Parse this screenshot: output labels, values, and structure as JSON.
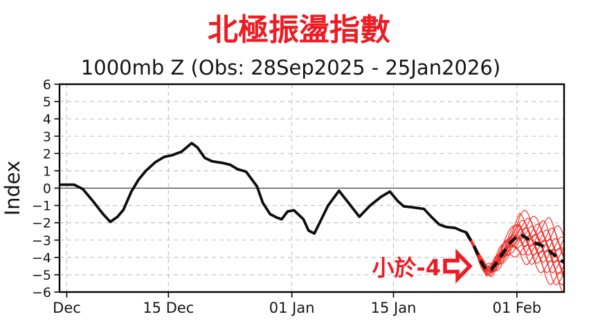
{
  "title": {
    "text": "北極振盪指數",
    "color": "#ed1b23"
  },
  "subtitle": {
    "text": "1000mb Z (Obs: 28Sep2025 - 25Jan2026)"
  },
  "axes": {
    "ylabel": "Index"
  },
  "annotation": {
    "text": "小於-4",
    "color": "#ed1b23",
    "arrow_icon": "hollow-right-arrow"
  },
  "colors": {
    "accent_red": "#ed1b23",
    "ensemble_red": "#f02822",
    "observed_black": "#0d0d0d",
    "grid_gray": "#bfbfbf",
    "zero_line": "#3c3c3c"
  },
  "chart_data": {
    "type": "line",
    "title": "北極振盪指數",
    "subtitle": "1000mb Z (Obs: 28Sep2025 - 25Jan2026)",
    "xlabel": "",
    "ylabel": "Index",
    "ylim": [
      -6,
      6
    ],
    "y_ticks": [
      6,
      5,
      4,
      3,
      2,
      1,
      0,
      -1,
      -2,
      -3,
      -4,
      -5,
      -6
    ],
    "x_axis": {
      "range_days": [
        0,
        69.5
      ],
      "day0_date": "30 Nov",
      "ticks": [
        {
          "label": "Dec",
          "day": 1
        },
        {
          "label": "15 Dec",
          "day": 15
        },
        {
          "label": "01 Jan",
          "day": 32
        },
        {
          "label": "15 Jan",
          "day": 46
        },
        {
          "label": "01 Feb",
          "day": 63
        }
      ]
    },
    "grid": {
      "horizontal_dashed_at": [
        5,
        4,
        3,
        2,
        1,
        -1,
        -2,
        -3,
        -4,
        -5
      ],
      "zero_line": "solid",
      "vertical_dashed_at_ticks": true
    },
    "series": [
      {
        "name": "observed",
        "style": "solid",
        "color": "#0d0d0d",
        "width": 3.8,
        "points": [
          [
            0,
            0.2
          ],
          [
            1,
            0.2
          ],
          [
            2,
            0.2
          ],
          [
            3.2,
            -0.05
          ],
          [
            4.6,
            -0.75
          ],
          [
            6,
            -1.5
          ],
          [
            7,
            -1.95
          ],
          [
            8,
            -1.65
          ],
          [
            8.8,
            -1.25
          ],
          [
            9.9,
            -0.2
          ],
          [
            10.9,
            0.5
          ],
          [
            11.9,
            1.0
          ],
          [
            13.2,
            1.5
          ],
          [
            14.4,
            1.8
          ],
          [
            15.5,
            1.9
          ],
          [
            16.8,
            2.1
          ],
          [
            18.2,
            2.6
          ],
          [
            19,
            2.35
          ],
          [
            20,
            1.75
          ],
          [
            21,
            1.55
          ],
          [
            22.5,
            1.45
          ],
          [
            23.5,
            1.35
          ],
          [
            24.5,
            1.1
          ],
          [
            25.7,
            0.95
          ],
          [
            27.2,
            0.1
          ],
          [
            28,
            -0.85
          ],
          [
            29,
            -1.5
          ],
          [
            29.9,
            -1.7
          ],
          [
            30.6,
            -1.8
          ],
          [
            31.4,
            -1.35
          ],
          [
            32.3,
            -1.28
          ],
          [
            33.6,
            -1.8
          ],
          [
            34.3,
            -2.45
          ],
          [
            35.1,
            -2.62
          ],
          [
            37,
            -1.0
          ],
          [
            38.5,
            -0.15
          ],
          [
            39.9,
            -0.9
          ],
          [
            41.3,
            -1.65
          ],
          [
            42.8,
            -1.0
          ],
          [
            44.3,
            -0.5
          ],
          [
            45.5,
            -0.2
          ],
          [
            46.6,
            -0.75
          ],
          [
            47.4,
            -1.05
          ],
          [
            48.5,
            -1.1
          ],
          [
            50.2,
            -1.2
          ],
          [
            51.2,
            -1.65
          ],
          [
            52.3,
            -2.1
          ],
          [
            53.3,
            -2.25
          ],
          [
            54.5,
            -2.3
          ],
          [
            55.3,
            -2.45
          ],
          [
            56,
            -2.55
          ]
        ]
      },
      {
        "name": "ensemble_mean",
        "style": "dashed",
        "color": "#0d0d0d",
        "width": 4.6,
        "points": [
          [
            56,
            -2.55
          ],
          [
            57.1,
            -3.35
          ],
          [
            58,
            -4.2
          ],
          [
            58.8,
            -4.75
          ],
          [
            59.5,
            -4.7
          ],
          [
            60.2,
            -4.3
          ],
          [
            61,
            -3.8
          ],
          [
            62.2,
            -3.1
          ],
          [
            63.4,
            -2.65
          ],
          [
            64.4,
            -2.9
          ],
          [
            65.4,
            -3.15
          ],
          [
            66.4,
            -3.3
          ],
          [
            67.4,
            -3.6
          ],
          [
            68.4,
            -3.95
          ],
          [
            69.5,
            -4.3
          ]
        ]
      }
    ],
    "ensemble": {
      "name": "forecast_members",
      "color": "#f02822",
      "width": 1.3,
      "opacity": 0.88,
      "count": 18,
      "base_offsets": [
        -1,
        -0.87,
        -0.74,
        -0.62,
        -0.5,
        -0.38,
        -0.27,
        -0.16,
        -0.05,
        0.05,
        0.16,
        0.27,
        0.38,
        0.5,
        0.62,
        0.74,
        0.87,
        1
      ],
      "spread": [
        0.04,
        0.12,
        0.2,
        0.27,
        0.3,
        0.33,
        0.42,
        0.6,
        0.95,
        1.05,
        1.1,
        1.18,
        1.27,
        1.36,
        1.45
      ],
      "wiggle_amp": [
        0.02,
        0.06,
        0.1,
        0.14,
        0.17,
        0.2,
        0.26,
        0.36,
        0.5,
        0.55,
        0.57,
        0.6,
        0.64,
        0.67,
        0.7
      ],
      "wiggle_freq": 1.9,
      "wiggle_phase_step": 2.4,
      "value_floor": -5.98
    },
    "annotation": {
      "text": "小於-4",
      "color": "#ed1b23",
      "arrow": "hollow-right-arrow",
      "arrow_points_to": "forecast dip below -4"
    }
  }
}
